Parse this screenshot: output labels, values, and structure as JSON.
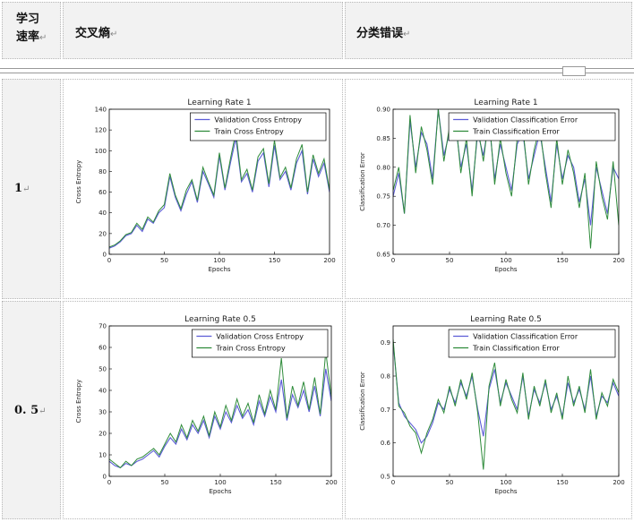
{
  "header": {
    "col1_line1": "学习",
    "col1_line2": "速率",
    "col2": "交叉熵",
    "col3": "分类错误",
    "para_mark": "↵"
  },
  "rows": [
    {
      "label": "1"
    },
    {
      "label": "0. 5"
    }
  ],
  "chart_data": [
    {
      "type": "line",
      "title": "Learning Rate 1",
      "xlabel": "Epochs",
      "ylabel": "Cross Entropy",
      "xlim": [
        0,
        200
      ],
      "ylim": [
        0,
        140
      ],
      "xticks": [
        "0",
        "50",
        "100",
        "150",
        "200"
      ],
      "yticks": [
        "0",
        "20",
        "40",
        "60",
        "80",
        "100",
        "120",
        "140"
      ],
      "legend": "top-right",
      "series": [
        {
          "name": "Validation Cross Entropy",
          "color": "#5c5cd6",
          "x": [
            0,
            5,
            10,
            15,
            20,
            25,
            30,
            35,
            40,
            45,
            50,
            55,
            60,
            65,
            70,
            75,
            80,
            85,
            90,
            95,
            100,
            105,
            110,
            115,
            120,
            125,
            130,
            135,
            140,
            145,
            150,
            155,
            160,
            165,
            170,
            175,
            180,
            185,
            190,
            195,
            200
          ],
          "y": [
            6,
            8,
            12,
            18,
            20,
            28,
            22,
            34,
            30,
            40,
            45,
            75,
            55,
            42,
            58,
            70,
            50,
            80,
            68,
            55,
            95,
            62,
            88,
            112,
            70,
            78,
            60,
            90,
            98,
            65,
            105,
            72,
            80,
            62,
            88,
            100,
            58,
            92,
            75,
            88,
            60
          ]
        },
        {
          "name": "Train Cross Entropy",
          "color": "#2e8b3a",
          "x": [
            0,
            5,
            10,
            15,
            20,
            25,
            30,
            35,
            40,
            45,
            50,
            55,
            60,
            65,
            70,
            75,
            80,
            85,
            90,
            95,
            100,
            105,
            110,
            115,
            120,
            125,
            130,
            135,
            140,
            145,
            150,
            155,
            160,
            165,
            170,
            175,
            180,
            185,
            190,
            195,
            200
          ],
          "y": [
            7,
            9,
            13,
            19,
            21,
            30,
            24,
            36,
            31,
            42,
            48,
            78,
            57,
            44,
            62,
            72,
            52,
            84,
            70,
            57,
            98,
            64,
            92,
            118,
            72,
            82,
            62,
            94,
            102,
            68,
            110,
            74,
            84,
            64,
            92,
            106,
            60,
            96,
            78,
            92,
            62
          ]
        }
      ]
    },
    {
      "type": "line",
      "title": "Learning Rate 1",
      "xlabel": "Epochs",
      "ylabel": "Classification Error",
      "xlim": [
        0,
        200
      ],
      "ylim": [
        0.65,
        0.9
      ],
      "xticks": [
        "0",
        "50",
        "100",
        "150",
        "200"
      ],
      "yticks": [
        "0.65",
        "0.70",
        "0.75",
        "0.80",
        "0.85",
        "0.90"
      ],
      "legend": "top-right",
      "series": [
        {
          "name": "Validation Classification Error",
          "color": "#5c5cd6",
          "x": [
            0,
            5,
            10,
            15,
            20,
            25,
            30,
            35,
            40,
            45,
            50,
            55,
            60,
            65,
            70,
            75,
            80,
            85,
            90,
            95,
            100,
            105,
            110,
            115,
            120,
            125,
            130,
            135,
            140,
            145,
            150,
            155,
            160,
            165,
            170,
            175,
            180,
            185,
            190,
            195,
            200
          ],
          "y": [
            0.75,
            0.79,
            0.72,
            0.88,
            0.8,
            0.86,
            0.84,
            0.78,
            0.9,
            0.82,
            0.86,
            0.88,
            0.8,
            0.84,
            0.76,
            0.86,
            0.82,
            0.88,
            0.78,
            0.84,
            0.8,
            0.76,
            0.84,
            0.86,
            0.78,
            0.82,
            0.86,
            0.8,
            0.74,
            0.84,
            0.78,
            0.82,
            0.8,
            0.74,
            0.78,
            0.7,
            0.8,
            0.76,
            0.72,
            0.8,
            0.78
          ]
        },
        {
          "name": "Train Classification Error",
          "color": "#2e8b3a",
          "x": [
            0,
            5,
            10,
            15,
            20,
            25,
            30,
            35,
            40,
            45,
            50,
            55,
            60,
            65,
            70,
            75,
            80,
            85,
            90,
            95,
            100,
            105,
            110,
            115,
            120,
            125,
            130,
            135,
            140,
            145,
            150,
            155,
            160,
            165,
            170,
            175,
            180,
            185,
            190,
            195,
            200
          ],
          "y": [
            0.76,
            0.8,
            0.72,
            0.89,
            0.79,
            0.87,
            0.83,
            0.77,
            0.9,
            0.81,
            0.87,
            0.89,
            0.79,
            0.85,
            0.75,
            0.87,
            0.81,
            0.89,
            0.77,
            0.85,
            0.79,
            0.75,
            0.85,
            0.87,
            0.77,
            0.83,
            0.87,
            0.79,
            0.73,
            0.85,
            0.77,
            0.83,
            0.79,
            0.73,
            0.79,
            0.66,
            0.81,
            0.75,
            0.71,
            0.81,
            0.7
          ]
        }
      ]
    },
    {
      "type": "line",
      "title": "Learning Rate 0.5",
      "xlabel": "Epochs",
      "ylabel": "Cross Entropy",
      "xlim": [
        0,
        200
      ],
      "ylim": [
        0,
        70
      ],
      "xticks": [
        "0",
        "50",
        "100",
        "150",
        "200"
      ],
      "yticks": [
        "0",
        "10",
        "20",
        "30",
        "40",
        "50",
        "60",
        "70"
      ],
      "legend": "top-right",
      "series": [
        {
          "name": "Validation Cross Entropy",
          "color": "#5c5cd6",
          "x": [
            0,
            5,
            10,
            15,
            20,
            25,
            30,
            35,
            40,
            45,
            50,
            55,
            60,
            65,
            70,
            75,
            80,
            85,
            90,
            95,
            100,
            105,
            110,
            115,
            120,
            125,
            130,
            135,
            140,
            145,
            150,
            155,
            160,
            165,
            170,
            175,
            180,
            185,
            190,
            195,
            200
          ],
          "y": [
            7,
            5,
            4,
            6,
            5,
            7,
            8,
            10,
            12,
            9,
            14,
            18,
            15,
            22,
            17,
            24,
            20,
            26,
            18,
            28,
            22,
            30,
            25,
            33,
            27,
            31,
            24,
            35,
            28,
            37,
            30,
            45,
            26,
            38,
            32,
            40,
            30,
            42,
            28,
            50,
            35
          ]
        },
        {
          "name": "Train Cross Entropy",
          "color": "#2e8b3a",
          "x": [
            0,
            5,
            10,
            15,
            20,
            25,
            30,
            35,
            40,
            45,
            50,
            55,
            60,
            65,
            70,
            75,
            80,
            85,
            90,
            95,
            100,
            105,
            110,
            115,
            120,
            125,
            130,
            135,
            140,
            145,
            150,
            155,
            160,
            165,
            170,
            175,
            180,
            185,
            190,
            195,
            200
          ],
          "y": [
            8,
            6,
            4,
            7,
            5,
            8,
            9,
            11,
            13,
            10,
            15,
            20,
            16,
            24,
            18,
            26,
            21,
            28,
            19,
            30,
            23,
            33,
            26,
            36,
            28,
            34,
            25,
            38,
            29,
            40,
            31,
            55,
            27,
            42,
            33,
            44,
            31,
            46,
            29,
            58,
            37
          ]
        }
      ]
    },
    {
      "type": "line",
      "title": "Learning Rate 0.5",
      "xlabel": "Epochs",
      "ylabel": "Classification Error",
      "xlim": [
        0,
        200
      ],
      "ylim": [
        0.5,
        0.95
      ],
      "xticks": [
        "0",
        "50",
        "100",
        "150",
        "200"
      ],
      "yticks": [
        "0.5",
        "0.6",
        "0.7",
        "0.8",
        "0.9"
      ],
      "legend": "top-right",
      "series": [
        {
          "name": "Validation Classification Error",
          "color": "#5c5cd6",
          "x": [
            0,
            5,
            10,
            15,
            20,
            25,
            30,
            35,
            40,
            45,
            50,
            55,
            60,
            65,
            70,
            75,
            80,
            85,
            90,
            95,
            100,
            105,
            110,
            115,
            120,
            125,
            130,
            135,
            140,
            145,
            150,
            155,
            160,
            165,
            170,
            175,
            180,
            185,
            190,
            195,
            200
          ],
          "y": [
            0.9,
            0.72,
            0.68,
            0.66,
            0.64,
            0.6,
            0.62,
            0.66,
            0.72,
            0.7,
            0.76,
            0.72,
            0.78,
            0.74,
            0.8,
            0.7,
            0.62,
            0.76,
            0.82,
            0.72,
            0.78,
            0.74,
            0.7,
            0.8,
            0.68,
            0.76,
            0.72,
            0.78,
            0.7,
            0.74,
            0.68,
            0.78,
            0.72,
            0.76,
            0.7,
            0.8,
            0.68,
            0.74,
            0.72,
            0.78,
            0.74
          ]
        },
        {
          "name": "Train Classification Error",
          "color": "#2e8b3a",
          "x": [
            0,
            5,
            10,
            15,
            20,
            25,
            30,
            35,
            40,
            45,
            50,
            55,
            60,
            65,
            70,
            75,
            80,
            85,
            90,
            95,
            100,
            105,
            110,
            115,
            120,
            125,
            130,
            135,
            140,
            145,
            150,
            155,
            160,
            165,
            170,
            175,
            180,
            185,
            190,
            195,
            200
          ],
          "y": [
            0.91,
            0.71,
            0.69,
            0.65,
            0.63,
            0.57,
            0.63,
            0.67,
            0.73,
            0.69,
            0.77,
            0.71,
            0.79,
            0.73,
            0.81,
            0.69,
            0.52,
            0.77,
            0.84,
            0.71,
            0.79,
            0.73,
            0.69,
            0.81,
            0.67,
            0.77,
            0.71,
            0.79,
            0.69,
            0.75,
            0.67,
            0.8,
            0.71,
            0.77,
            0.69,
            0.82,
            0.67,
            0.75,
            0.71,
            0.79,
            0.75
          ]
        }
      ]
    }
  ]
}
